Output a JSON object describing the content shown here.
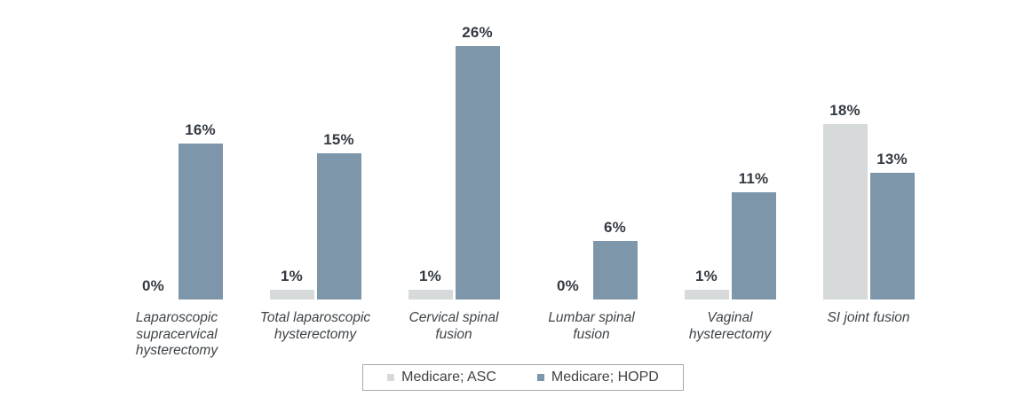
{
  "chart_data": {
    "type": "bar",
    "title": "",
    "xlabel": "",
    "ylabel": "",
    "ylim": [
      0,
      28
    ],
    "grid": false,
    "axes_visible": false,
    "legend_position": "bottom-center",
    "categories": [
      "Laparoscopic\nsupracervical\nhysterectomy",
      "Total laparoscopic\nhysterectomy",
      "Cervical spinal\nfusion",
      "Lumbar spinal\nfusion",
      "Vaginal\nhysterectomy",
      "SI joint fusion"
    ],
    "series": [
      {
        "name": "Medicare; ASC",
        "color": "#d7dadb",
        "values": [
          0,
          1,
          1,
          0,
          1,
          18
        ],
        "labels": [
          "0%",
          "1%",
          "1%",
          "0%",
          "1%",
          "18%"
        ]
      },
      {
        "name": "Medicare; HOPD",
        "color": "#7e96a9",
        "values": [
          16,
          15,
          26,
          6,
          11,
          13
        ],
        "labels": [
          "16%",
          "15%",
          "26%",
          "6%",
          "11%",
          "13%"
        ]
      }
    ],
    "value_label_color": "#343a42",
    "category_label_color": "#3e4347",
    "legend_border_color": "#a9a9a9",
    "background_color": "#ffffff"
  }
}
